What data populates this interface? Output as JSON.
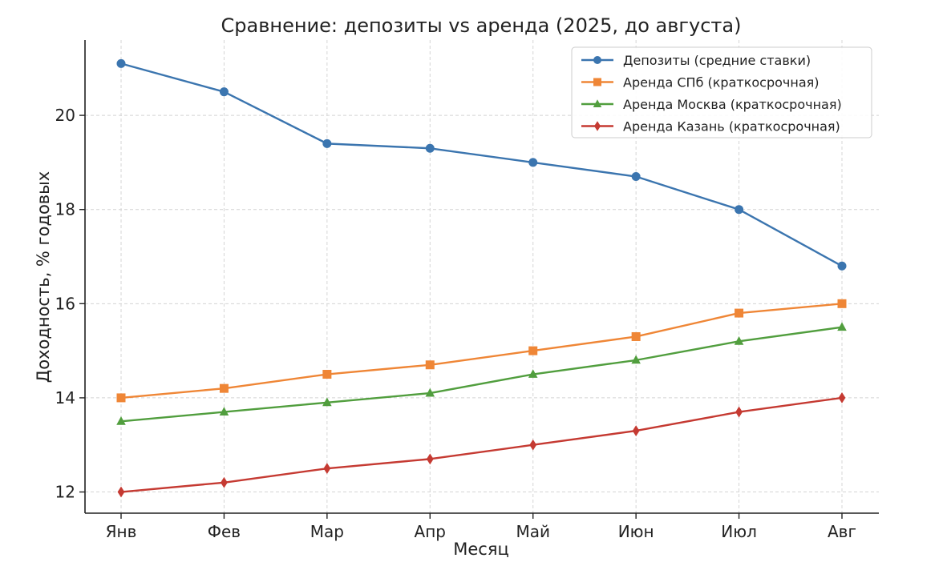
{
  "chart_data": {
    "type": "line",
    "title": "Сравнение: депозиты vs аренда (2025, до августа)",
    "xlabel": "Месяц",
    "ylabel": "Доходность, % годовых",
    "categories": [
      "Янв",
      "Фев",
      "Мар",
      "Апр",
      "Май",
      "Июн",
      "Июл",
      "Авг"
    ],
    "ylim": [
      11.55,
      21.6
    ],
    "yticks": [
      12,
      14,
      16,
      18,
      20
    ],
    "grid": true,
    "legend_position": "top-right",
    "series": [
      {
        "name": "Депозиты (средние ставки)",
        "color": "#3b75af",
        "marker": "circle",
        "values": [
          21.1,
          20.5,
          19.4,
          19.3,
          19.0,
          18.7,
          18.0,
          16.8
        ]
      },
      {
        "name": "Аренда СПб (краткосрочная)",
        "color": "#ef8636",
        "marker": "square",
        "values": [
          14.0,
          14.2,
          14.5,
          14.7,
          15.0,
          15.3,
          15.8,
          16.0
        ]
      },
      {
        "name": "Аренда Москва (краткосрочная)",
        "color": "#519e3e",
        "marker": "triangle",
        "values": [
          13.5,
          13.7,
          13.9,
          14.1,
          14.5,
          14.8,
          15.2,
          15.5
        ]
      },
      {
        "name": "Аренда Казань (краткосрочная)",
        "color": "#c53a32",
        "marker": "diamond",
        "values": [
          12.0,
          12.2,
          12.5,
          12.7,
          13.0,
          13.3,
          13.7,
          14.0
        ]
      }
    ]
  }
}
